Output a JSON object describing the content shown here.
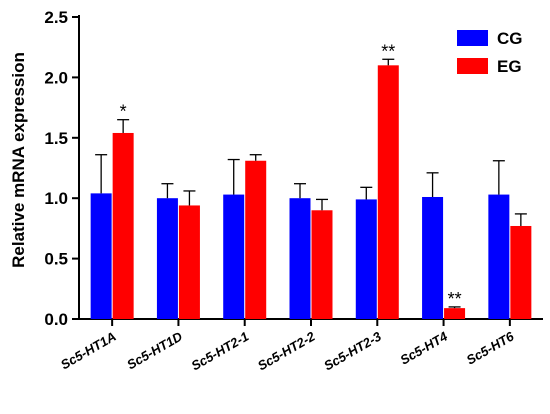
{
  "chart_data": {
    "type": "bar",
    "categories": [
      "Sc5-HT1A",
      "Sc5-HT1D",
      "Sc5-HT2-1",
      "Sc5-HT2-2",
      "Sc5-HT2-3",
      "Sc5-HT4",
      "Sc5-HT6"
    ],
    "series": [
      {
        "name": "CG",
        "color": "#0000ff",
        "values": [
          1.04,
          1.0,
          1.03,
          1.0,
          0.99,
          1.01,
          1.03
        ],
        "errors": [
          0.32,
          0.12,
          0.29,
          0.12,
          0.1,
          0.2,
          0.28
        ],
        "significance": [
          "",
          "",
          "",
          "",
          "",
          "",
          ""
        ]
      },
      {
        "name": "EG",
        "color": "#ff0000",
        "values": [
          1.54,
          0.94,
          1.31,
          0.9,
          2.1,
          0.09,
          0.77
        ],
        "errors": [
          0.11,
          0.12,
          0.05,
          0.09,
          0.05,
          0.01,
          0.1
        ],
        "significance": [
          "*",
          "",
          "",
          "",
          "**",
          "**",
          ""
        ]
      }
    ],
    "ylabel": "Relative mRNA expression",
    "xlabel": "",
    "ylim": [
      0,
      2.5
    ],
    "yticks": [
      "0.0",
      "0.5",
      "1.0",
      "1.5",
      "2.0",
      "2.5"
    ],
    "grid": false,
    "legend_position": "top-right"
  }
}
